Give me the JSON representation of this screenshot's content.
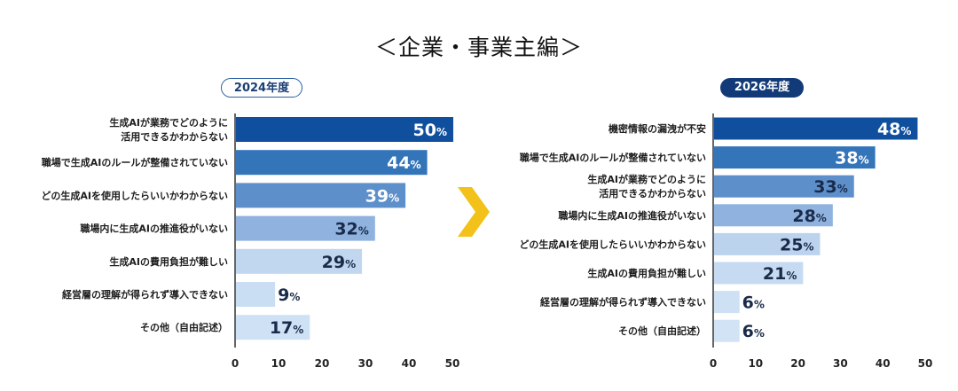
{
  "title": "＜企業・事業主編＞",
  "chart_data": [
    {
      "type": "bar",
      "orientation": "horizontal",
      "badge": "2024年度",
      "categories": [
        [
          "生成AIが業務でどのように",
          "活用できるかわからない"
        ],
        [
          "職場で生成AIのルールが整備されていない"
        ],
        [
          "どの生成AIを使用したらいいかわからない"
        ],
        [
          "職場内に生成AIの推進役がいない"
        ],
        [
          "生成AIの費用負担が難しい"
        ],
        [
          "経営層の理解が得られず導入できない"
        ],
        [
          "その他（自由記述）"
        ]
      ],
      "values": [
        50,
        44,
        39,
        32,
        29,
        9,
        17
      ],
      "value_labels": [
        "50%",
        "44%",
        "39%",
        "32%",
        "29%",
        "9%",
        "17%"
      ],
      "colors": [
        "#0f4f9e",
        "#3474b9",
        "#5d8fcb",
        "#8fb2df",
        "#c1d6ef",
        "#c9ddf3",
        "#cfe1f5"
      ],
      "label_colors": [
        "#ffffff",
        "#ffffff",
        "#ffffff",
        "#1a2b4a",
        "#1a2b4a",
        "#1a2b4a",
        "#1a2b4a"
      ],
      "xlim": [
        0,
        50
      ],
      "xticks": [
        "0",
        "10",
        "20",
        "30",
        "40",
        "50"
      ]
    },
    {
      "type": "bar",
      "orientation": "horizontal",
      "badge": "2026年度",
      "categories": [
        [
          "機密情報の漏洩が不安"
        ],
        [
          "職場で生成AIのルールが整備されていない"
        ],
        [
          "生成AIが業務でどのように",
          "活用できるかわからない"
        ],
        [
          "職場内に生成AIの推進役がいない"
        ],
        [
          "どの生成AIを使用したらいいかわからない"
        ],
        [
          "生成AIの費用負担が難しい"
        ],
        [
          "経営層の理解が得られず導入できない"
        ],
        [
          "その他（自由記述）"
        ]
      ],
      "values": [
        48,
        38,
        33,
        28,
        25,
        21,
        6,
        6
      ],
      "value_labels": [
        "48%",
        "38%",
        "33%",
        "28%",
        "25%",
        "21%",
        "6%",
        "6%"
      ],
      "colors": [
        "#0f4f9e",
        "#3474b9",
        "#5d8fcb",
        "#8fb2df",
        "#bcd3ee",
        "#c6dbf2",
        "#cde0f4",
        "#d2e3f6"
      ],
      "label_colors": [
        "#ffffff",
        "#ffffff",
        "#1a2b4a",
        "#1a2b4a",
        "#1a2b4a",
        "#1a2b4a",
        "#1a2b4a",
        "#1a2b4a"
      ],
      "xlim": [
        0,
        50
      ],
      "xticks": [
        "0",
        "10",
        "20",
        "30",
        "40",
        "50"
      ]
    }
  ]
}
